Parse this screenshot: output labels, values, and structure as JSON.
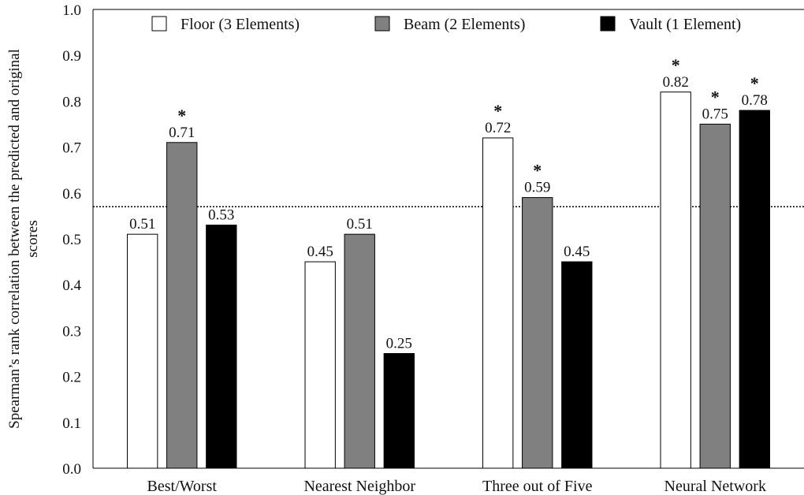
{
  "chart_data": {
    "type": "bar",
    "ylabel_lines": [
      "Spearman’s rank correlation between the predicted and original",
      "scores"
    ],
    "categories": [
      "Best/Worst",
      "Nearest Neighbor",
      "Three out of Five",
      "Neural Network"
    ],
    "series": [
      {
        "name": "Floor (3 Elements)",
        "color": "#ffffff",
        "values": [
          0.51,
          0.45,
          0.72,
          0.82
        ],
        "labels": [
          "0.51",
          "0.45",
          "0.72",
          "0.82"
        ],
        "significant": [
          false,
          false,
          true,
          true
        ]
      },
      {
        "name": "Beam (2 Elements)",
        "color": "#808080",
        "values": [
          0.71,
          0.51,
          0.59,
          0.75
        ],
        "labels": [
          "0.71",
          "0.51",
          "0.59",
          "0.75"
        ],
        "significant": [
          true,
          false,
          true,
          true
        ]
      },
      {
        "name": "Vault (1 Element)",
        "color": "#000000",
        "values": [
          0.53,
          0.25,
          0.45,
          0.78
        ],
        "labels": [
          "0.53",
          "0.25",
          "0.45",
          "0.78"
        ],
        "significant": [
          false,
          false,
          false,
          true
        ]
      }
    ],
    "ylim": [
      0,
      1.0
    ],
    "yticks": [
      "0.0",
      "0.1",
      "0.2",
      "0.3",
      "0.4",
      "0.5",
      "0.6",
      "0.7",
      "0.8",
      "0.9",
      "1.0"
    ],
    "reference_line": 0.57,
    "significance_marker": "*",
    "legend_position": "top",
    "grid": false
  }
}
